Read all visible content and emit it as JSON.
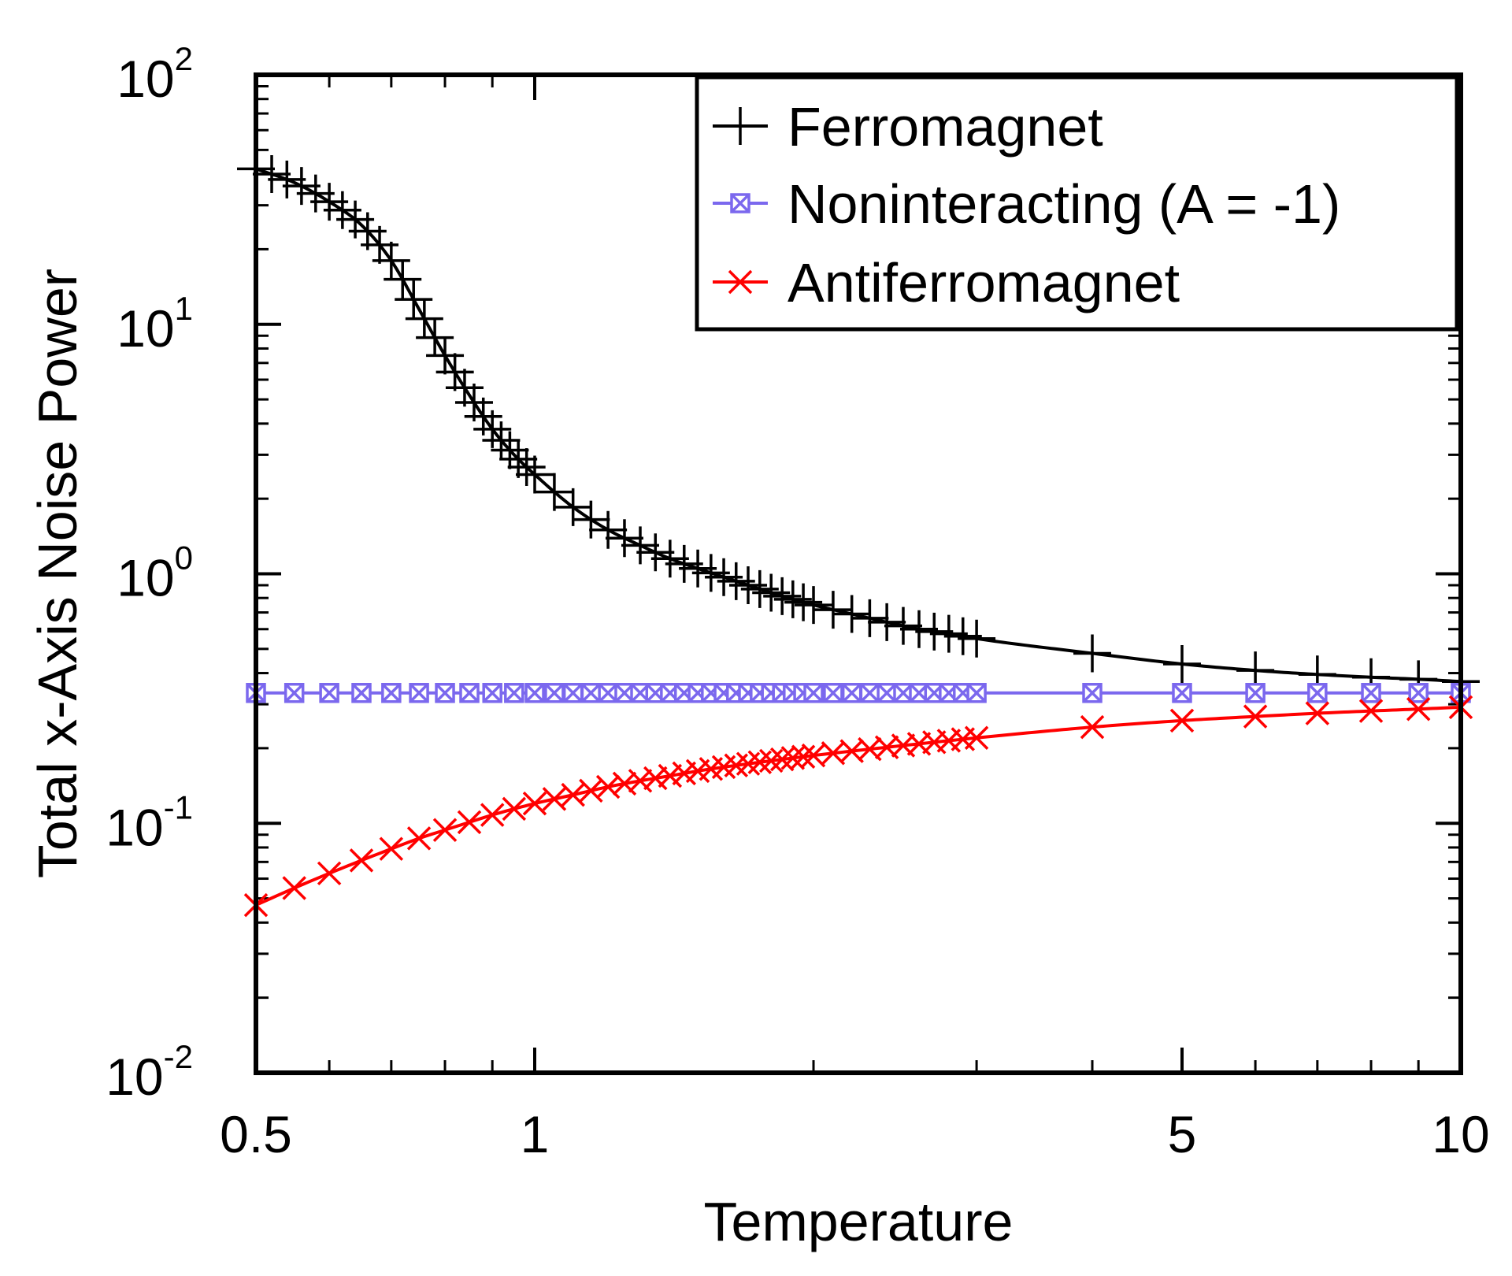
{
  "chart_data": {
    "type": "line",
    "x_scale": "log",
    "y_scale": "log",
    "xlim": [
      0.5,
      10
    ],
    "ylim": [
      0.01,
      100
    ],
    "xlabel": "Temperature",
    "ylabel": "Total x-Axis Noise Power",
    "legend_position": "top-right",
    "x_ticks": [
      {
        "value": 0.5,
        "label": "0.5"
      },
      {
        "value": 1,
        "label": "1"
      },
      {
        "value": 5,
        "label": "5"
      },
      {
        "value": 10,
        "label": "10"
      }
    ],
    "y_ticks": [
      {
        "value": 0.01,
        "base": "10",
        "exp": "-2"
      },
      {
        "value": 0.1,
        "base": "10",
        "exp": "-1"
      },
      {
        "value": 1,
        "base": "10",
        "exp": "0"
      },
      {
        "value": 10,
        "base": "10",
        "exp": "1"
      },
      {
        "value": 100,
        "base": "10",
        "exp": "2"
      }
    ],
    "series": [
      {
        "name": "Ferromagnet",
        "color": "#000000",
        "marker": "plus",
        "curve_x": [
          0.5,
          0.55,
          0.6,
          0.65,
          0.7,
          0.75,
          0.8,
          0.85,
          0.9,
          0.95,
          1.0,
          1.1,
          1.2,
          1.3,
          1.4,
          1.5,
          1.6,
          1.7,
          1.8,
          1.9,
          2.0,
          2.2,
          2.4,
          2.6,
          2.8,
          3.0,
          4.0,
          5.0,
          6.0,
          7.0,
          8.0,
          9.0,
          10.0
        ],
        "curve_y": [
          42,
          37,
          31,
          25,
          18,
          11.5,
          7.5,
          5.2,
          3.8,
          3.0,
          2.5,
          1.85,
          1.5,
          1.3,
          1.15,
          1.05,
          0.97,
          0.9,
          0.84,
          0.79,
          0.75,
          0.69,
          0.64,
          0.6,
          0.575,
          0.55,
          0.48,
          0.435,
          0.41,
          0.395,
          0.385,
          0.378,
          0.37
        ],
        "marker_x": [
          0.5,
          0.52,
          0.54,
          0.56,
          0.58,
          0.6,
          0.62,
          0.64,
          0.66,
          0.68,
          0.7,
          0.72,
          0.74,
          0.76,
          0.78,
          0.8,
          0.82,
          0.84,
          0.86,
          0.88,
          0.9,
          0.92,
          0.94,
          0.96,
          0.98,
          1.0,
          1.05,
          1.1,
          1.15,
          1.2,
          1.25,
          1.3,
          1.35,
          1.4,
          1.45,
          1.5,
          1.55,
          1.6,
          1.65,
          1.7,
          1.75,
          1.8,
          1.85,
          1.9,
          1.95,
          2.0,
          2.1,
          2.2,
          2.3,
          2.4,
          2.5,
          2.6,
          2.7,
          2.8,
          2.9,
          3.0,
          4.0,
          5.0,
          6.0,
          7.0,
          8.0,
          9.0,
          10.0
        ]
      },
      {
        "name": "Noninteracting (A = -1)",
        "color": "#7b68ee",
        "marker": "boxed-x",
        "constant_value": 0.333,
        "marker_x": [
          0.5,
          0.55,
          0.6,
          0.65,
          0.7,
          0.75,
          0.8,
          0.85,
          0.9,
          0.95,
          1.0,
          1.05,
          1.1,
          1.15,
          1.2,
          1.25,
          1.3,
          1.35,
          1.4,
          1.45,
          1.5,
          1.55,
          1.6,
          1.65,
          1.7,
          1.75,
          1.8,
          1.85,
          1.9,
          1.95,
          2.0,
          2.1,
          2.2,
          2.3,
          2.4,
          2.5,
          2.6,
          2.7,
          2.8,
          2.9,
          3.0,
          4.0,
          5.0,
          6.0,
          7.0,
          8.0,
          9.0,
          10.0
        ]
      },
      {
        "name": "Antiferromagnet",
        "color": "#ff0000",
        "marker": "x",
        "curve_x": [
          0.5,
          0.55,
          0.6,
          0.65,
          0.7,
          0.75,
          0.8,
          0.85,
          0.9,
          1.0,
          1.1,
          1.2,
          1.3,
          1.4,
          1.5,
          1.6,
          1.8,
          2.0,
          2.5,
          3.0,
          4.0,
          5.0,
          6.0,
          7.0,
          8.0,
          9.0,
          10.0
        ],
        "curve_y": [
          0.047,
          0.055,
          0.063,
          0.071,
          0.079,
          0.087,
          0.094,
          0.101,
          0.108,
          0.12,
          0.13,
          0.14,
          0.148,
          0.155,
          0.162,
          0.168,
          0.178,
          0.187,
          0.205,
          0.22,
          0.243,
          0.258,
          0.268,
          0.276,
          0.282,
          0.287,
          0.292
        ],
        "marker_x": [
          0.5,
          0.55,
          0.6,
          0.65,
          0.7,
          0.75,
          0.8,
          0.85,
          0.9,
          0.95,
          1.0,
          1.05,
          1.1,
          1.15,
          1.2,
          1.25,
          1.3,
          1.35,
          1.4,
          1.45,
          1.5,
          1.55,
          1.6,
          1.65,
          1.7,
          1.75,
          1.8,
          1.85,
          1.9,
          1.95,
          2.0,
          2.1,
          2.2,
          2.3,
          2.4,
          2.5,
          2.6,
          2.7,
          2.8,
          2.9,
          3.0,
          4.0,
          5.0,
          6.0,
          7.0,
          8.0,
          9.0,
          10.0
        ]
      }
    ]
  }
}
